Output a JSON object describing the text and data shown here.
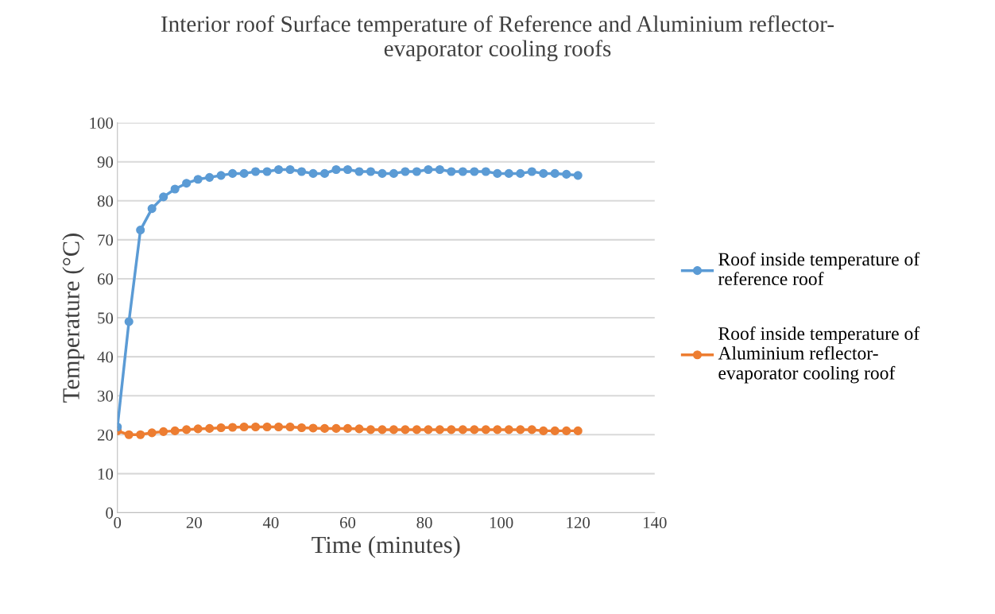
{
  "chart_data": {
    "type": "line",
    "title": "Interior roof Surface temperature of Reference and Aluminium reflector-\nevaporator cooling roofs",
    "xlabel": "Time (minutes)",
    "ylabel": "Temperature (°C)",
    "x": [
      0,
      3,
      6,
      9,
      12,
      15,
      18,
      21,
      24,
      27,
      30,
      33,
      36,
      39,
      42,
      45,
      48,
      51,
      54,
      57,
      60,
      63,
      66,
      69,
      72,
      75,
      78,
      81,
      84,
      87,
      90,
      93,
      96,
      99,
      102,
      105,
      108,
      111,
      114,
      117,
      120
    ],
    "series": [
      {
        "name": "Roof inside temperature of\nreference roof",
        "color": "#5b9bd5",
        "values": [
          22,
          49,
          72.5,
          78,
          81,
          83,
          84.5,
          85.5,
          86,
          86.5,
          87,
          87,
          87.5,
          87.5,
          88,
          88,
          87.5,
          87,
          87,
          88,
          88,
          87.5,
          87.5,
          87,
          87,
          87.5,
          87.5,
          88,
          88,
          87.5,
          87.5,
          87.5,
          87.5,
          87,
          87,
          87,
          87.5,
          87,
          87,
          86.8,
          86.5
        ]
      },
      {
        "name": "Roof inside temperature of\nAluminium reflector-\nevaporator cooling roof",
        "color": "#ed7d31",
        "values": [
          21,
          20,
          20,
          20.5,
          20.8,
          21,
          21.3,
          21.5,
          21.6,
          21.8,
          21.9,
          22,
          22,
          22,
          22,
          22,
          21.8,
          21.7,
          21.6,
          21.6,
          21.6,
          21.5,
          21.3,
          21.3,
          21.3,
          21.3,
          21.3,
          21.3,
          21.3,
          21.3,
          21.3,
          21.3,
          21.3,
          21.3,
          21.3,
          21.3,
          21.3,
          21,
          21,
          21,
          21
        ]
      }
    ],
    "xlim": [
      0,
      140
    ],
    "xticks": [
      0,
      20,
      40,
      60,
      80,
      100,
      120,
      140
    ],
    "ylim": [
      0,
      100
    ],
    "yticks": [
      0,
      10,
      20,
      30,
      40,
      50,
      60,
      70,
      80,
      90,
      100
    ],
    "grid": "y",
    "legend": "right",
    "marker": "circle",
    "line_style": "solid"
  }
}
